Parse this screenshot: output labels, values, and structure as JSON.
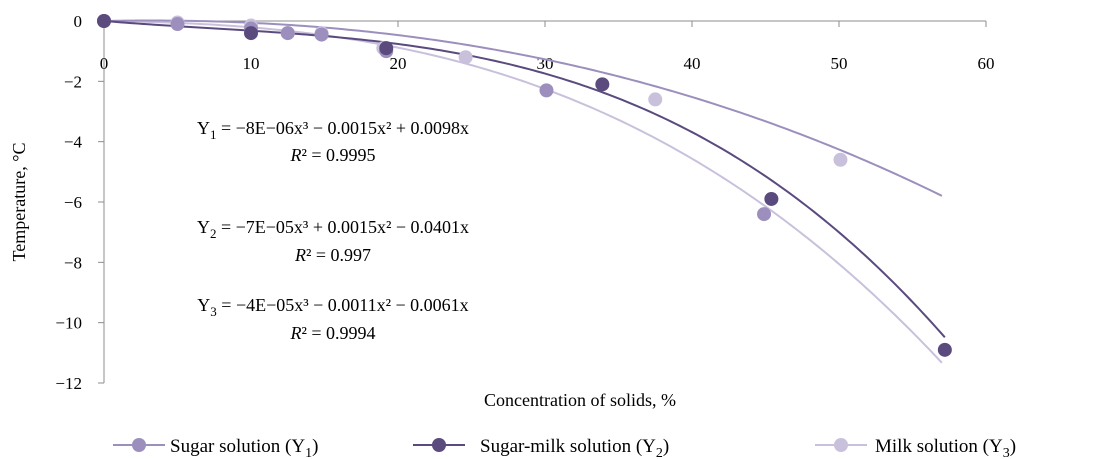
{
  "chart_data": {
    "type": "scatter",
    "xlabel": "Concentration of solids, %",
    "ylabel": "Temperature, °C",
    "xlim": [
      0,
      60
    ],
    "ylim": [
      -12,
      0
    ],
    "x_ticks": [
      "0",
      "10",
      "20",
      "30",
      "40",
      "50",
      "60"
    ],
    "y_ticks": [
      "0",
      "−2",
      "−4",
      "−6",
      "−8",
      "−10",
      "−12"
    ],
    "grid": false,
    "legend_position": "bottom",
    "series": [
      {
        "name": "Sugar solution (Y1)",
        "color": "#9c8fbd",
        "points": [
          [
            0,
            0
          ],
          [
            5,
            -0.1
          ],
          [
            10,
            -0.25
          ],
          [
            12.5,
            -0.4
          ],
          [
            14.8,
            -0.45
          ],
          [
            19.2,
            -1.0
          ],
          [
            30.1,
            -2.3
          ],
          [
            44.9,
            -6.4
          ]
        ],
        "fit": {
          "a3": -8e-06,
          "a2": -0.0015,
          "a1": 0.0098,
          "x_max": 57
        },
        "equation": {
          "prefix": "Y",
          "sub": "1",
          "body": "−8E−06x³ − 0.0015x² + 0.0098x",
          "r2": "0.9995"
        }
      },
      {
        "name": "Sugar-milk solution (Y2)",
        "color": "#5b4a7e",
        "points": [
          [
            0,
            0
          ],
          [
            10,
            -0.4
          ],
          [
            19.2,
            -0.9
          ],
          [
            33.9,
            -2.1
          ],
          [
            45.4,
            -5.9
          ],
          [
            57.2,
            -10.9
          ]
        ],
        "fit": {
          "a3": -7e-05,
          "a2": 0.0015,
          "a1": -0.0401,
          "x_max": 57.2
        },
        "equation": {
          "prefix": "Y",
          "sub": "2",
          "body": "−7E−05x³ + 0.0015x² − 0.0401x",
          "r2": "0.997"
        }
      },
      {
        "name": "Milk solution (Y3)",
        "color": "#c9c1dc",
        "points": [
          [
            0,
            0
          ],
          [
            5,
            -0.05
          ],
          [
            10,
            -0.15
          ],
          [
            12.5,
            -0.4
          ],
          [
            14.8,
            -0.4
          ],
          [
            19,
            -0.9
          ],
          [
            24.6,
            -1.2
          ],
          [
            37.5,
            -2.6
          ],
          [
            50.1,
            -4.6
          ]
        ],
        "fit": {
          "a3": -4e-05,
          "a2": -0.0011,
          "a1": -0.0061,
          "x_max": 57
        },
        "equation": {
          "prefix": "Y",
          "sub": "3",
          "body": "−4E−05x³ − 0.0011x² − 0.0061x",
          "r2": "0.9994"
        }
      }
    ],
    "legend": [
      {
        "prefix": "Sugar solution (Y",
        "sub": "1",
        "suffix": ")"
      },
      {
        "prefix": "Sugar-milk solution (Y",
        "sub": "2",
        "suffix": ")"
      },
      {
        "prefix": "Milk solution (Y",
        "sub": "3",
        "suffix": ")"
      }
    ]
  }
}
